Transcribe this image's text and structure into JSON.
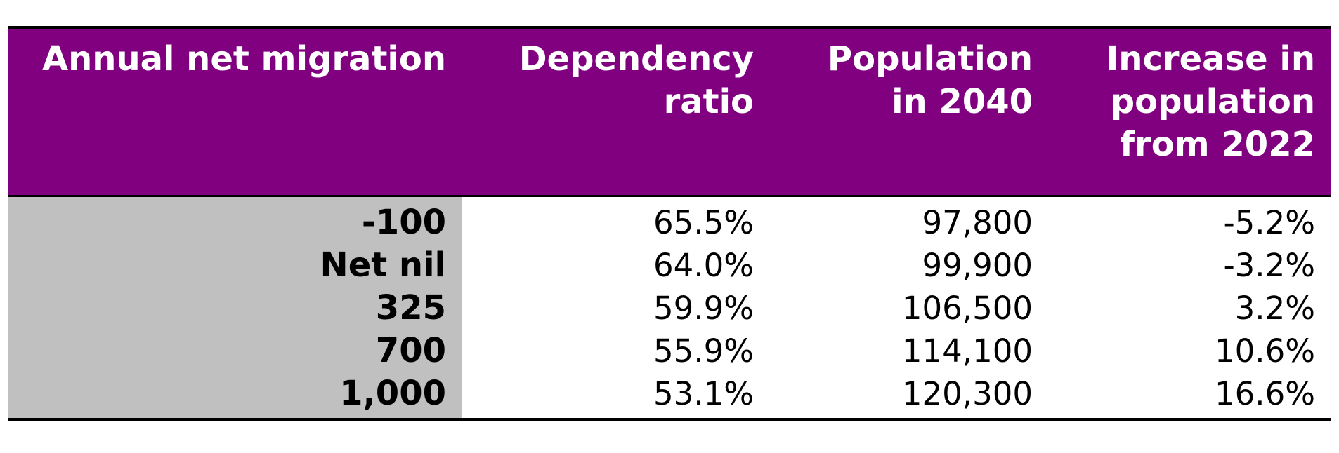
{
  "table": {
    "headers": [
      "Annual net migration",
      "Dependency ratio",
      "Population in 2040",
      "Increase in population from 2022"
    ],
    "rows": [
      {
        "migration": "-100",
        "dependency_ratio": "65.5%",
        "population_2040": "97,800",
        "increase": "-5.2%"
      },
      {
        "migration": "Net nil",
        "dependency_ratio": "64.0%",
        "population_2040": "99,900",
        "increase": "-3.2%"
      },
      {
        "migration": "325",
        "dependency_ratio": "59.9%",
        "population_2040": "106,500",
        "increase": "3.2%"
      },
      {
        "migration": "700",
        "dependency_ratio": "55.9%",
        "population_2040": "114,100",
        "increase": "10.6%"
      },
      {
        "migration": "1,000",
        "dependency_ratio": "53.1%",
        "population_2040": "120,300",
        "increase": "16.6%"
      }
    ]
  },
  "colors": {
    "header_background": "#800080",
    "header_text": "#ffffff",
    "label_column_background": "#c0c0c0",
    "rule": "#000000"
  }
}
